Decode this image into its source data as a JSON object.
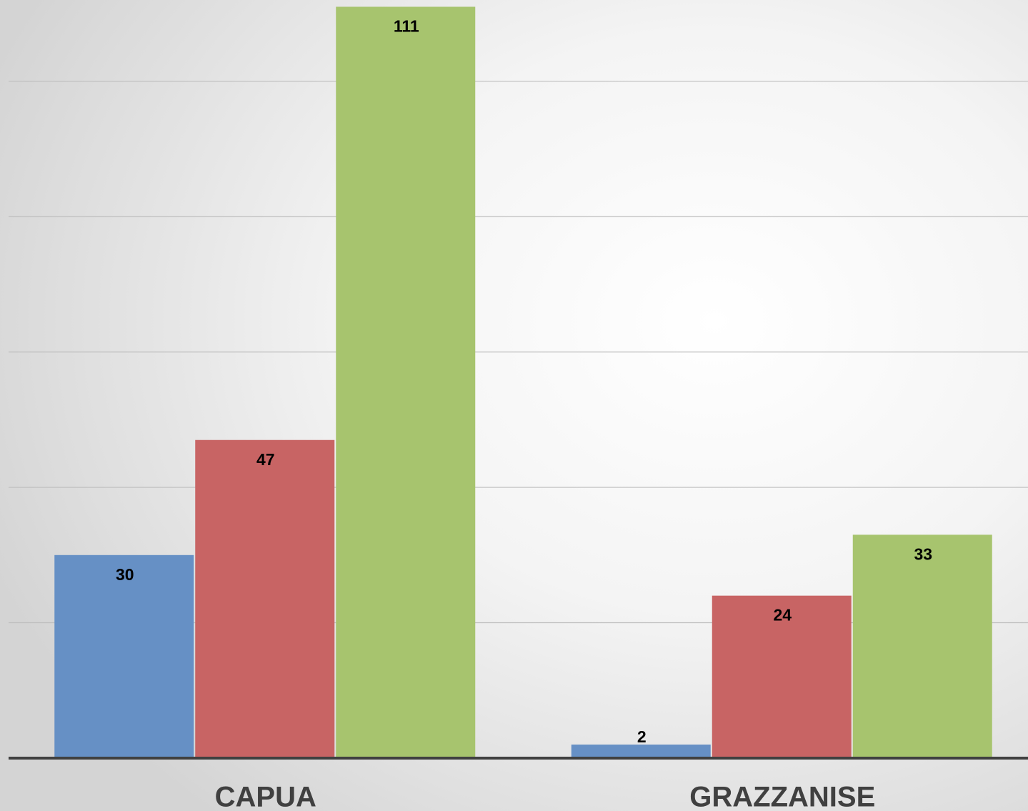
{
  "chart_data": {
    "type": "bar",
    "categories": [
      "CAPUA",
      "GRAZZANISE"
    ],
    "series": [
      {
        "color": "#6690c5",
        "values": [
          30,
          2
        ]
      },
      {
        "color": "#c86464",
        "values": [
          47,
          24
        ]
      },
      {
        "color": "#a7c46e",
        "values": [
          111,
          33
        ]
      }
    ],
    "ylim": [
      0,
      112
    ],
    "yticks": [
      0,
      20,
      40,
      60,
      80,
      100
    ],
    "grid": true
  }
}
